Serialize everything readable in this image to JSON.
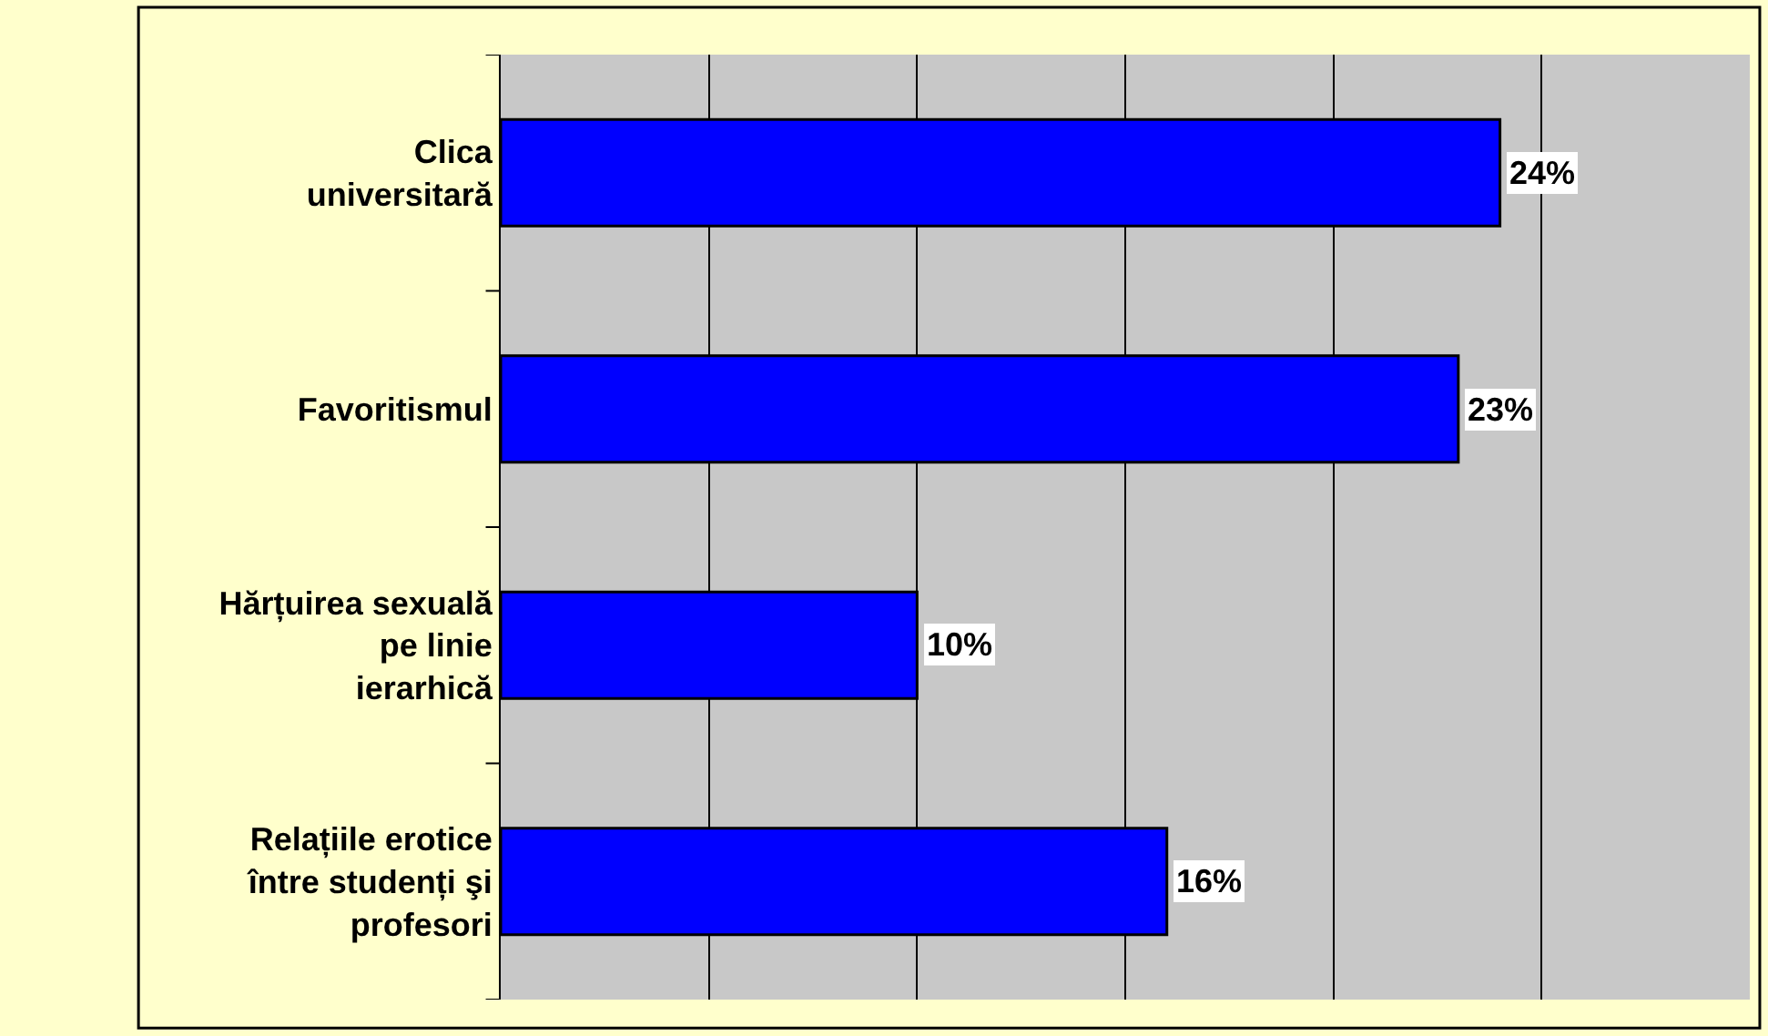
{
  "chart_data": {
    "type": "bar",
    "orientation": "horizontal",
    "categories": [
      "Clica universitară",
      "Favoritismul",
      "Hărțuirea sexuală pe linie ierarhică",
      "Relațiile erotice între studenți şi profesori"
    ],
    "values": [
      24,
      23,
      10,
      16
    ],
    "value_labels": [
      "24%",
      "23%",
      "10%",
      "16%"
    ],
    "color": "#0000ff",
    "xlim": [
      0,
      30
    ],
    "xticks": [
      {
        "value": 0,
        "label": null
      },
      {
        "value": 5,
        "label": null
      },
      {
        "value": 10,
        "label": null
      },
      {
        "value": 15,
        "label": null
      },
      {
        "value": 20,
        "label": null
      },
      {
        "value": 25,
        "label": null
      },
      {
        "value": 30,
        "label": null
      }
    ],
    "grid": "x",
    "legend": false,
    "tick_labels": "y"
  }
}
